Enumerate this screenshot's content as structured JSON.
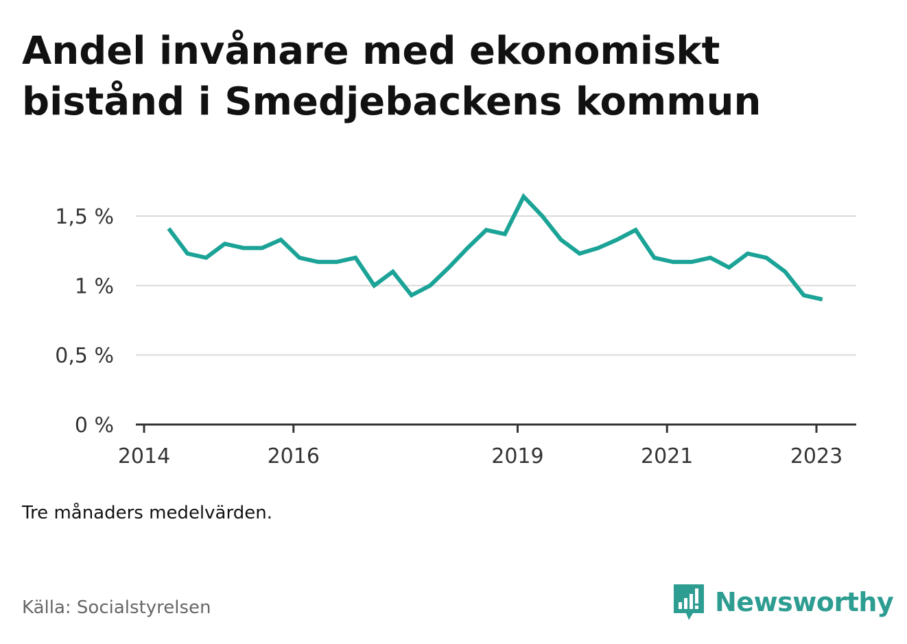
{
  "title": "Andel invånare med ekonomiskt bistånd i Smedjebackens kommun",
  "note": "Tre månaders medelvärden.",
  "source": "Källa: Socialstyrelsen",
  "brand": {
    "name": "Newsworthy",
    "icon": "newsworthy-logo-icon",
    "color": "#2d9d91"
  },
  "chart_data": {
    "type": "line",
    "title": "Andel invånare med ekonomiskt bistånd i Smedjebackens kommun",
    "xlabel": "",
    "ylabel": "",
    "ylim": [
      0,
      1.7
    ],
    "yticks": [
      0,
      0.5,
      1,
      1.5
    ],
    "ytick_labels": [
      "0 %",
      "0,5 %",
      "1 %",
      "1,5 %"
    ],
    "xticks": [
      2014,
      2016,
      2019,
      2021,
      2023
    ],
    "xtick_labels": [
      "2014",
      "2016",
      "2019",
      "2021",
      "2023"
    ],
    "grid": true,
    "line_color": "#1aa396",
    "series": [
      {
        "x": [
          2014.33,
          2014.58,
          2014.83,
          2015.08,
          2015.33,
          2015.58,
          2015.83,
          2016.08,
          2016.33,
          2016.58,
          2016.83,
          2017.08,
          2017.33,
          2017.58,
          2017.83,
          2018.08,
          2018.33,
          2018.58,
          2018.83,
          2019.08,
          2019.33,
          2019.58,
          2019.83,
          2020.08,
          2020.33,
          2020.58,
          2020.83,
          2021.08,
          2021.33,
          2021.58,
          2021.83,
          2022.08,
          2022.33,
          2022.58,
          2022.83,
          2023.08
        ],
        "values": [
          1.41,
          1.23,
          1.2,
          1.3,
          1.27,
          1.27,
          1.33,
          1.2,
          1.17,
          1.17,
          1.2,
          1.0,
          1.1,
          0.93,
          1.0,
          1.13,
          1.27,
          1.4,
          1.37,
          1.64,
          1.5,
          1.33,
          1.23,
          1.27,
          1.33,
          1.4,
          1.2,
          1.17,
          1.17,
          1.2,
          1.13,
          1.23,
          1.2,
          1.1,
          0.93,
          0.9
        ]
      }
    ]
  }
}
